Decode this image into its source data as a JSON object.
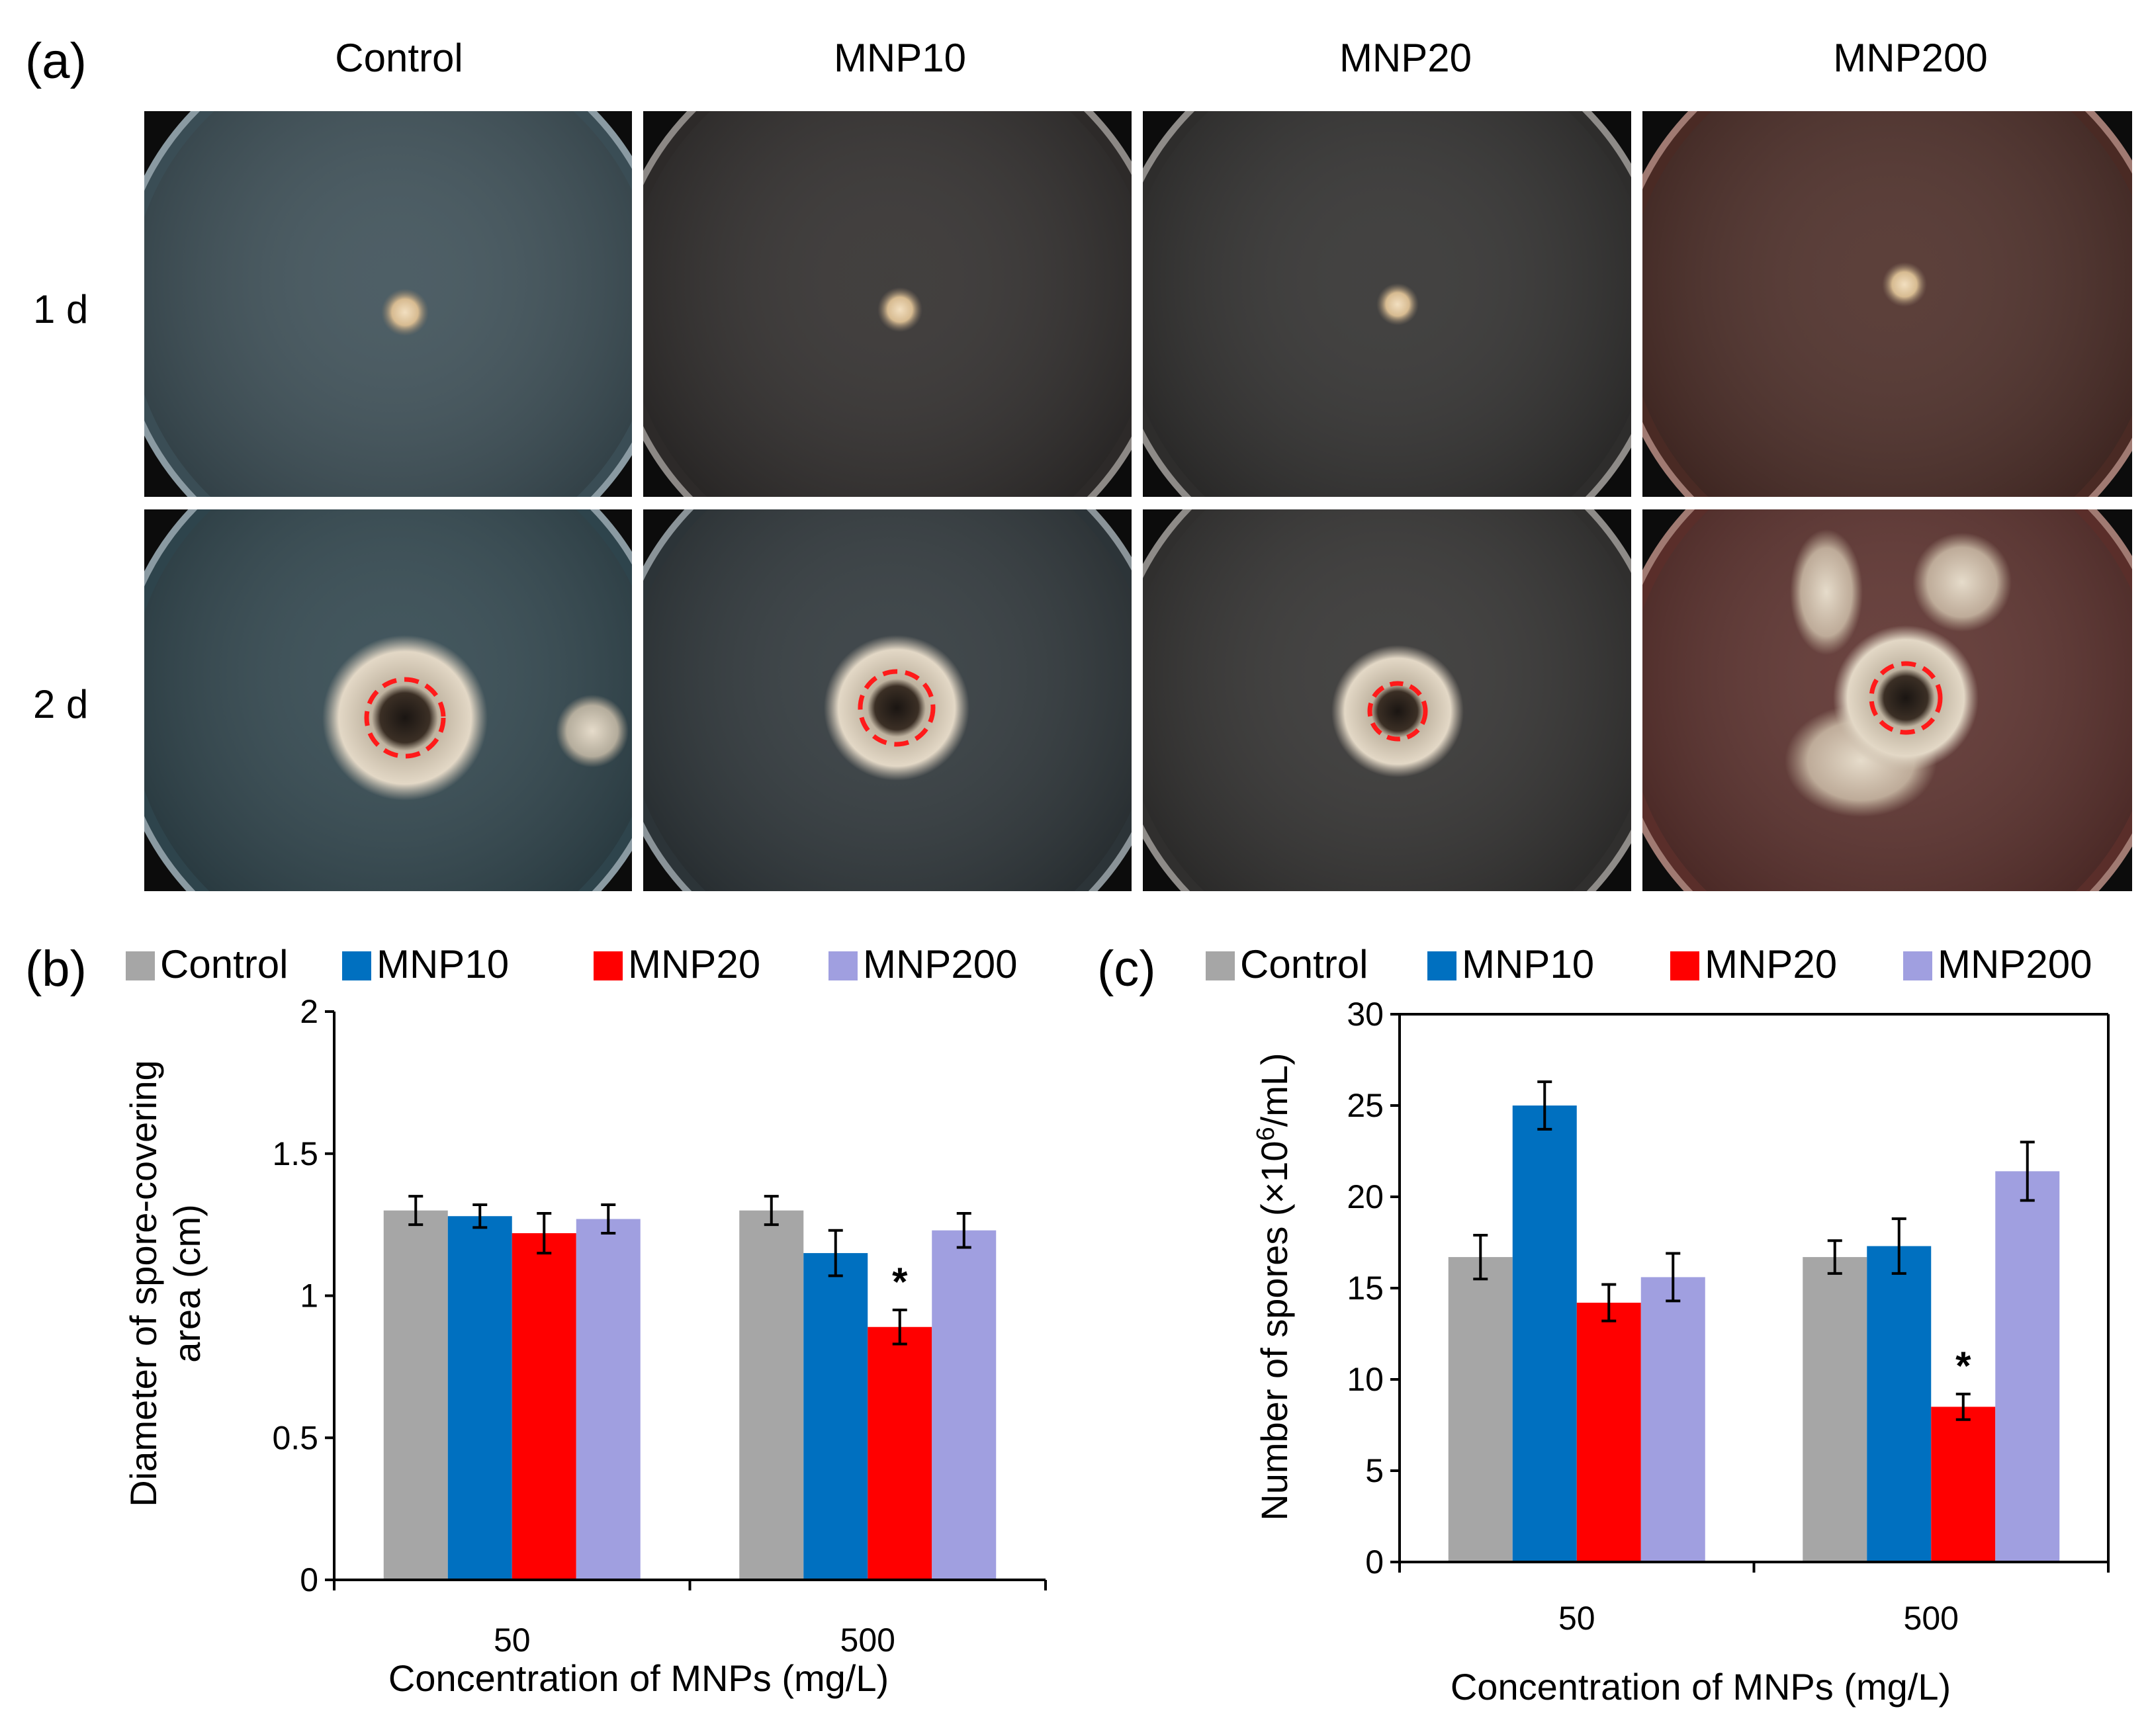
{
  "figure": {
    "panel_a": {
      "letter": "(a)",
      "columns": [
        "Control",
        "MNP10",
        "MNP20",
        "MNP200"
      ],
      "rows": [
        "1 d",
        "2 d"
      ],
      "plates": [
        {
          "row": "1 d",
          "column": "Control",
          "tint": "#3a4d55"
        },
        {
          "row": "1 d",
          "column": "MNP10",
          "tint": "#2d2a29"
        },
        {
          "row": "1 d",
          "column": "MNP20",
          "tint": "#2e2d2c"
        },
        {
          "row": "1 d",
          "column": "MNP200",
          "tint": "#4a2a24"
        },
        {
          "row": "2 d",
          "column": "Control",
          "tint": "#2e444c"
        },
        {
          "row": "2 d",
          "column": "MNP10",
          "tint": "#2c3438"
        },
        {
          "row": "2 d",
          "column": "MNP20",
          "tint": "#302f2e"
        },
        {
          "row": "2 d",
          "column": "MNP200",
          "tint": "#5a2e2a"
        }
      ]
    }
  },
  "chart_data": [
    {
      "panel": "(b)",
      "type": "bar",
      "categories": [
        "50",
        "500"
      ],
      "series": [
        {
          "name": "Control",
          "color": "#a6a6a6",
          "values": [
            1.3,
            1.3
          ],
          "errors": [
            0.05,
            0.05
          ]
        },
        {
          "name": "MNP10",
          "color": "#0070c0",
          "values": [
            1.28,
            1.15
          ],
          "errors": [
            0.04,
            0.08
          ]
        },
        {
          "name": "MNP20",
          "color": "#ff0000",
          "values": [
            1.22,
            0.89
          ],
          "errors": [
            0.07,
            0.06
          ]
        },
        {
          "name": "MNP200",
          "color": "#a09fe0",
          "values": [
            1.27,
            1.23
          ],
          "errors": [
            0.05,
            0.06
          ]
        }
      ],
      "annotations": [
        {
          "category": "500",
          "series": "MNP20",
          "text": "*"
        }
      ],
      "xlabel": "Concentration of MNPs (mg/L)",
      "ylabel_lines": [
        "Diameter of spore-covering",
        "area (cm)"
      ],
      "yticks": [
        0,
        0.5,
        1,
        1.5,
        2
      ],
      "ytick_labels": [
        "0",
        "0.5",
        "1",
        "1.5",
        "2"
      ],
      "ylim": [
        0,
        2
      ]
    },
    {
      "panel": "(c)",
      "type": "bar",
      "categories": [
        "50",
        "500"
      ],
      "series": [
        {
          "name": "Control",
          "color": "#a6a6a6",
          "values": [
            16.7,
            16.7
          ],
          "errors": [
            1.2,
            0.9
          ]
        },
        {
          "name": "MNP10",
          "color": "#0070c0",
          "values": [
            25.0,
            17.3
          ],
          "errors": [
            1.3,
            1.5
          ]
        },
        {
          "name": "MNP20",
          "color": "#ff0000",
          "values": [
            14.2,
            8.5
          ],
          "errors": [
            1.0,
            0.7
          ]
        },
        {
          "name": "MNP200",
          "color": "#a09fe0",
          "values": [
            15.6,
            21.4
          ],
          "errors": [
            1.3,
            1.6
          ]
        }
      ],
      "annotations": [
        {
          "category": "500",
          "series": "MNP20",
          "text": "*"
        }
      ],
      "xlabel": "Concentration of MNPs (mg/L)",
      "ylabel_prefix": "Number of spores (×10",
      "ylabel_sup": "6",
      "ylabel_suffix": "/mL)",
      "yticks": [
        0,
        5,
        10,
        15,
        20,
        25,
        30
      ],
      "ytick_labels": [
        "0",
        "5",
        "10",
        "15",
        "20",
        "25",
        "30"
      ],
      "ylim": [
        0,
        30
      ]
    }
  ]
}
